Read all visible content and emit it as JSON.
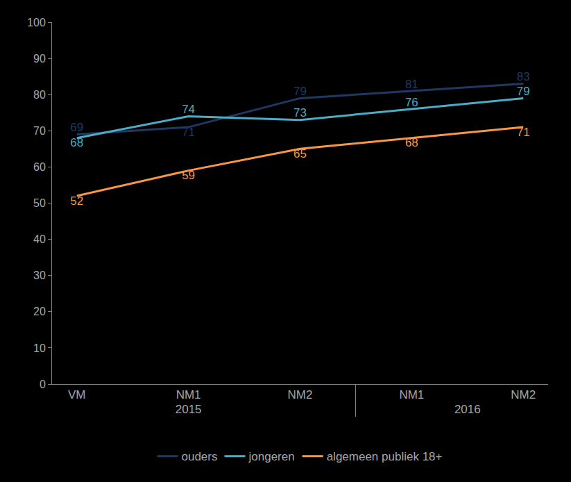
{
  "chart_data": {
    "type": "line",
    "categories": [
      "VM",
      "NM1",
      "NM2",
      "NM1",
      "NM2"
    ],
    "groups": [
      "2015",
      "2015",
      "2015",
      "2016",
      "2016"
    ],
    "series": [
      {
        "name": "ouders",
        "color": "#1f3864",
        "values": [
          69,
          71,
          79,
          81,
          83
        ]
      },
      {
        "name": "jongeren",
        "color": "#4bacc6",
        "values": [
          68,
          74,
          73,
          76,
          79
        ]
      },
      {
        "name": "algemeen publiek 18+",
        "color": "#f79646",
        "values": [
          52,
          59,
          65,
          68,
          71
        ]
      }
    ],
    "ylim": [
      0,
      100
    ],
    "yticks": [
      0,
      10,
      20,
      30,
      40,
      50,
      60,
      70,
      80,
      90,
      100
    ],
    "grid": false,
    "data_labels": true,
    "legend": "bottom"
  }
}
